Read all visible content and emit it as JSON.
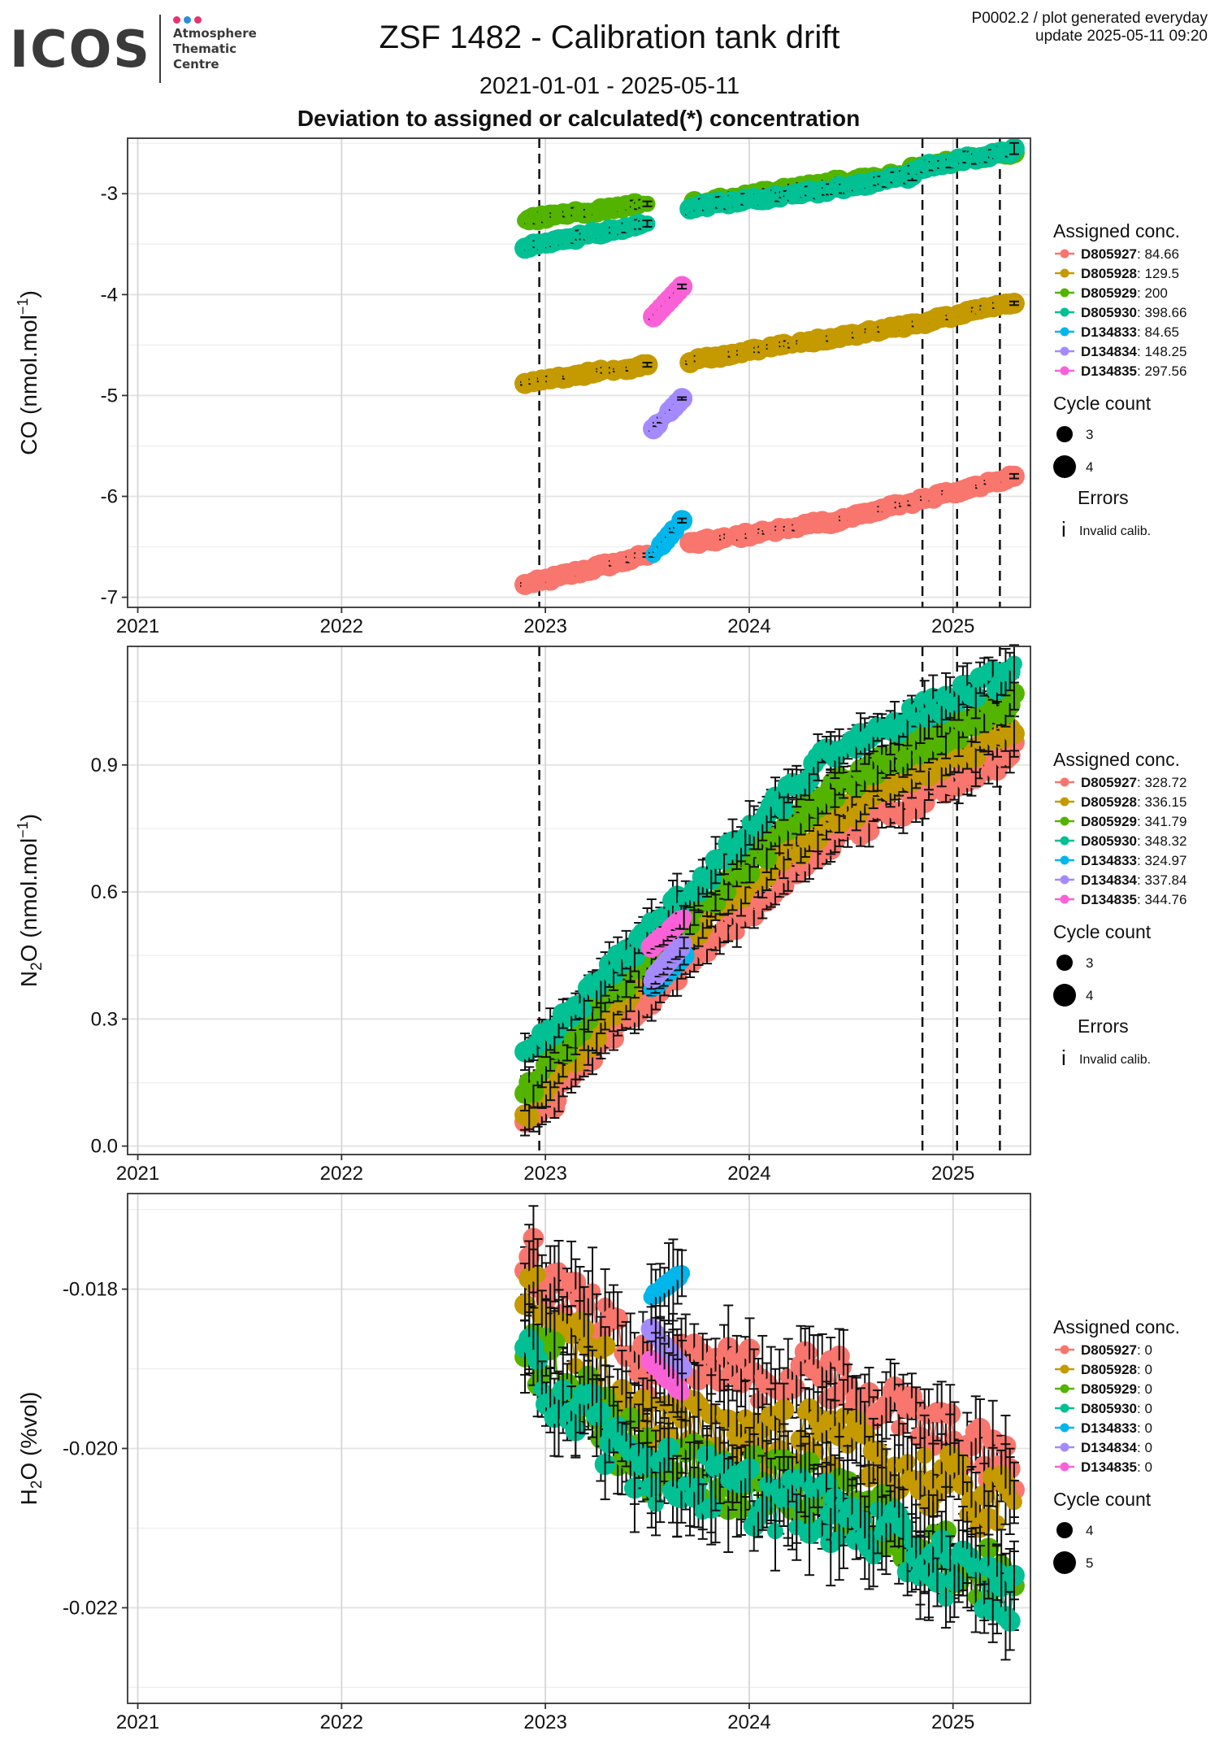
{
  "logo": {
    "wordmark": "ICOS",
    "line1": "Atmosphere",
    "line2": "Thematic",
    "line3": "Centre",
    "dot_colors": [
      "#e5336d",
      "#2a8fd6",
      "#e5336d"
    ]
  },
  "header": {
    "title": "ZSF 1482 - Calibration tank drift",
    "subtitle": "2021-01-01 - 2025-05-11",
    "heading": "Deviation to assigned or calculated(*) concentration",
    "plot_id": "P0002.2 / plot generated everyday",
    "update": "update  2025-05-11 09:20"
  },
  "colors": {
    "D805927": "#f8766d",
    "D805928": "#c49a00",
    "D805929": "#53b400",
    "D805930": "#00c094",
    "D134833": "#00b6eb",
    "D134834": "#a58aff",
    "D134835": "#fb61d7"
  },
  "chart_data": [
    {
      "type": "scatter",
      "id": "co",
      "ylabel": "CO (nmol.mol⁻¹)",
      "ylabel_main": "CO (nmol.mol",
      "ylabel_sup": "−1",
      "ylabel_end": ")",
      "xlim": [
        2020.95,
        2025.38
      ],
      "ylim": [
        -7.1,
        -2.45
      ],
      "xticks": [
        2021,
        2022,
        2023,
        2024,
        2025
      ],
      "xtick_labels": [
        "2021",
        "2022",
        "2023",
        "2024",
        "2025"
      ],
      "yticks": [
        -7,
        -6,
        -5,
        -4,
        -3
      ],
      "ytick_labels": [
        "-7",
        "-6",
        "-5",
        "-4",
        "-3"
      ],
      "vlines": [
        2022.97,
        2024.85,
        2025.02,
        2025.23
      ],
      "grid": true,
      "legend": {
        "position": "right",
        "assigned_title": "Assigned conc.",
        "entries": [
          {
            "id": "D805927",
            "label": "D805927",
            "value": ": 84.66"
          },
          {
            "id": "D805928",
            "label": "D805928",
            "value": ": 129.5"
          },
          {
            "id": "D805929",
            "label": "D805929",
            "value": ": 200"
          },
          {
            "id": "D805930",
            "label": "D805930",
            "value": ": 398.66"
          },
          {
            "id": "D134833",
            "label": "D134833",
            "value": ": 84.65"
          },
          {
            "id": "D134834",
            "label": "D134834",
            "value": ": 148.25"
          },
          {
            "id": "D134835",
            "label": "D134835",
            "value": ": 297.56"
          }
        ],
        "cycle_title": "Cycle count",
        "cycle_values": [
          "3",
          "4"
        ],
        "errors_title": "Errors",
        "errors_label": "Invalid calib."
      },
      "series": [
        {
          "id": "D805927",
          "segments": [
            {
              "x": [
                2022.9,
                2023.5
              ],
              "y": [
                -6.88,
                -6.58
              ]
            },
            {
              "x": [
                2023.71,
                2024.4
              ],
              "y": [
                -6.47,
                -6.25
              ]
            },
            {
              "x": [
                2024.4,
                2024.8
              ],
              "y": [
                -6.25,
                -6.06
              ]
            },
            {
              "x": [
                2024.8,
                2025.3
              ],
              "y": [
                -6.06,
                -5.8
              ]
            }
          ],
          "noise": 0.02,
          "err": 0.02
        },
        {
          "id": "D805928",
          "segments": [
            {
              "x": [
                2022.9,
                2023.5
              ],
              "y": [
                -4.87,
                -4.7
              ]
            },
            {
              "x": [
                2023.71,
                2024.4
              ],
              "y": [
                -4.66,
                -4.43
              ]
            },
            {
              "x": [
                2024.4,
                2024.8
              ],
              "y": [
                -4.43,
                -4.3
              ]
            },
            {
              "x": [
                2024.8,
                2025.3
              ],
              "y": [
                -4.3,
                -4.08
              ]
            }
          ],
          "noise": 0.015,
          "err": 0.02
        },
        {
          "id": "D805929",
          "segments": [
            {
              "x": [
                2022.9,
                2023.5
              ],
              "y": [
                -3.26,
                -3.1
              ]
            },
            {
              "x": [
                2023.71,
                2024.4
              ],
              "y": [
                -3.1,
                -2.89
              ]
            },
            {
              "x": [
                2024.4,
                2024.8
              ],
              "y": [
                -2.89,
                -2.8
              ]
            },
            {
              "x": [
                2024.8,
                2025.3
              ],
              "y": [
                -2.75,
                -2.59
              ]
            }
          ],
          "noise": 0.02,
          "err": 0.03
        },
        {
          "id": "D805930",
          "segments": [
            {
              "x": [
                2022.9,
                2023.5
              ],
              "y": [
                -3.53,
                -3.3
              ]
            },
            {
              "x": [
                2023.71,
                2024.4
              ],
              "y": [
                -3.14,
                -2.96
              ]
            },
            {
              "x": [
                2024.4,
                2024.8
              ],
              "y": [
                -2.96,
                -2.82
              ]
            },
            {
              "x": [
                2024.8,
                2025.3
              ],
              "y": [
                -2.75,
                -2.57
              ]
            }
          ],
          "noise": 0.02,
          "err": 0.04
        },
        {
          "id": "D134833",
          "segments": [
            {
              "x": [
                2023.53,
                2023.67
              ],
              "y": [
                -6.58,
                -6.24
              ]
            }
          ],
          "noise": 0.0,
          "err": 0.02
        },
        {
          "id": "D134834",
          "segments": [
            {
              "x": [
                2023.53,
                2023.67
              ],
              "y": [
                -5.33,
                -5.03
              ]
            }
          ],
          "noise": 0.0,
          "err": 0.02
        },
        {
          "id": "D134835",
          "segments": [
            {
              "x": [
                2023.53,
                2023.67
              ],
              "y": [
                -4.22,
                -3.92
              ]
            }
          ],
          "noise": 0.0,
          "err": 0.02
        }
      ]
    },
    {
      "type": "scatter",
      "id": "n2o",
      "ylabel": "N₂O (nmol.mol⁻¹)",
      "ylabel_main": "N",
      "ylabel_sub": "2",
      "ylabel_mid": "O (nmol.mol",
      "ylabel_sup": "−1",
      "ylabel_end": ")",
      "xlim": [
        2020.95,
        2025.38
      ],
      "ylim": [
        -0.02,
        1.18
      ],
      "xticks": [
        2021,
        2022,
        2023,
        2024,
        2025
      ],
      "xtick_labels": [
        "2021",
        "2022",
        "2023",
        "2024",
        "2025"
      ],
      "yticks": [
        0.0,
        0.3,
        0.6,
        0.9
      ],
      "ytick_labels": [
        "0.0",
        "0.3",
        "0.6",
        "0.9"
      ],
      "vlines": [
        2022.97,
        2024.85,
        2025.02,
        2025.23
      ],
      "grid": true,
      "legend": {
        "position": "right",
        "assigned_title": "Assigned conc.",
        "entries": [
          {
            "id": "D805927",
            "label": "D805927",
            "value": ": 328.72"
          },
          {
            "id": "D805928",
            "label": "D805928",
            "value": ": 336.15"
          },
          {
            "id": "D805929",
            "label": "D805929",
            "value": ": 341.79"
          },
          {
            "id": "D805930",
            "label": "D805930",
            "value": ": 348.32"
          },
          {
            "id": "D134833",
            "label": "D134833",
            "value": ": 324.97"
          },
          {
            "id": "D134834",
            "label": "D134834",
            "value": ": 337.84"
          },
          {
            "id": "D134835",
            "label": "D134835",
            "value": ": 344.76"
          }
        ],
        "cycle_title": "Cycle count",
        "cycle_values": [
          "3",
          "4"
        ],
        "errors_title": "Errors",
        "errors_label": "Invalid calib."
      },
      "series": [
        {
          "id": "D805927",
          "segments": [
            {
              "x": [
                2022.9,
                2023.5
              ],
              "y": [
                0.04,
                0.35
              ]
            },
            {
              "x": [
                2023.5,
                2024.4
              ],
              "y": [
                0.35,
                0.72
              ]
            },
            {
              "x": [
                2024.4,
                2025.3
              ],
              "y": [
                0.72,
                0.93
              ]
            }
          ],
          "noise": 0.025,
          "err": 0.03
        },
        {
          "id": "D805928",
          "segments": [
            {
              "x": [
                2022.9,
                2023.5
              ],
              "y": [
                0.08,
                0.42
              ]
            },
            {
              "x": [
                2023.5,
                2024.4
              ],
              "y": [
                0.42,
                0.77
              ]
            },
            {
              "x": [
                2024.4,
                2025.3
              ],
              "y": [
                0.77,
                0.99
              ]
            }
          ],
          "noise": 0.025,
          "err": 0.03
        },
        {
          "id": "D805929",
          "segments": [
            {
              "x": [
                2022.9,
                2023.5
              ],
              "y": [
                0.13,
                0.45
              ]
            },
            {
              "x": [
                2023.5,
                2024.4
              ],
              "y": [
                0.45,
                0.84
              ]
            },
            {
              "x": [
                2024.4,
                2025.3
              ],
              "y": [
                0.84,
                1.05
              ]
            }
          ],
          "noise": 0.025,
          "err": 0.03
        },
        {
          "id": "D805930",
          "segments": [
            {
              "x": [
                2022.9,
                2023.5
              ],
              "y": [
                0.2,
                0.5
              ]
            },
            {
              "x": [
                2023.5,
                2024.4
              ],
              "y": [
                0.5,
                0.93
              ]
            },
            {
              "x": [
                2024.4,
                2025.3
              ],
              "y": [
                0.93,
                1.12
              ]
            }
          ],
          "noise": 0.025,
          "err": 0.04
        },
        {
          "id": "D134833",
          "segments": [
            {
              "x": [
                2023.52,
                2023.68
              ],
              "y": [
                0.37,
                0.45
              ]
            }
          ],
          "noise": 0.0,
          "err": 0.02
        },
        {
          "id": "D134834",
          "segments": [
            {
              "x": [
                2023.52,
                2023.68
              ],
              "y": [
                0.39,
                0.48
              ]
            }
          ],
          "noise": 0.0,
          "err": 0.02
        },
        {
          "id": "D134835",
          "segments": [
            {
              "x": [
                2023.52,
                2023.68
              ],
              "y": [
                0.47,
                0.54
              ]
            }
          ],
          "noise": 0.0,
          "err": 0.02
        }
      ]
    },
    {
      "type": "scatter",
      "id": "h2o",
      "ylabel": "H₂O (%vol)",
      "ylabel_main": "H",
      "ylabel_sub": "2",
      "ylabel_mid": "O (%vol)",
      "xlim": [
        2020.95,
        2025.38
      ],
      "ylim": [
        -0.0232,
        -0.0168
      ],
      "xticks": [
        2021,
        2022,
        2023,
        2024,
        2025
      ],
      "xtick_labels": [
        "2021",
        "2022",
        "2023",
        "2024",
        "2025"
      ],
      "yticks": [
        -0.022,
        -0.02,
        -0.018
      ],
      "ytick_labels": [
        "-0.022",
        "-0.020",
        "-0.018"
      ],
      "vlines": [],
      "grid": true,
      "legend": {
        "position": "right",
        "assigned_title": "Assigned conc.",
        "entries": [
          {
            "id": "D805927",
            "label": "D805927",
            "value": ": 0"
          },
          {
            "id": "D805928",
            "label": "D805928",
            "value": ": 0"
          },
          {
            "id": "D805929",
            "label": "D805929",
            "value": ": 0"
          },
          {
            "id": "D805930",
            "label": "D805930",
            "value": ": 0"
          },
          {
            "id": "D134833",
            "label": "D134833",
            "value": ": 0"
          },
          {
            "id": "D134834",
            "label": "D134834",
            "value": ": 0"
          },
          {
            "id": "D134835",
            "label": "D134835",
            "value": ": 0"
          }
        ],
        "cycle_title": "Cycle count",
        "cycle_values": [
          "4",
          "5"
        ]
      },
      "series": [
        {
          "id": "D805927",
          "segments": [
            {
              "x": [
                2022.9,
                2023.5
              ],
              "y": [
                -0.0176,
                -0.019
              ]
            },
            {
              "x": [
                2023.5,
                2024.4
              ],
              "y": [
                -0.019,
                -0.0191
              ]
            },
            {
              "x": [
                2024.4,
                2025.3
              ],
              "y": [
                -0.0191,
                -0.0203
              ]
            }
          ],
          "noise": 0.00035,
          "err": 0.0004
        },
        {
          "id": "D805928",
          "segments": [
            {
              "x": [
                2022.9,
                2023.5
              ],
              "y": [
                -0.018,
                -0.0197
              ]
            },
            {
              "x": [
                2023.5,
                2024.4
              ],
              "y": [
                -0.0197,
                -0.0199
              ]
            },
            {
              "x": [
                2024.4,
                2025.3
              ],
              "y": [
                -0.0199,
                -0.0208
              ]
            }
          ],
          "noise": 0.0004,
          "err": 0.0004
        },
        {
          "id": "D805929",
          "segments": [
            {
              "x": [
                2022.9,
                2023.5
              ],
              "y": [
                -0.0187,
                -0.0202
              ]
            },
            {
              "x": [
                2023.5,
                2024.4
              ],
              "y": [
                -0.0202,
                -0.0206
              ]
            },
            {
              "x": [
                2024.4,
                2025.3
              ],
              "y": [
                -0.0206,
                -0.0218
              ]
            }
          ],
          "noise": 0.0004,
          "err": 0.0004
        },
        {
          "id": "D805930",
          "segments": [
            {
              "x": [
                2022.9,
                2023.5
              ],
              "y": [
                -0.0189,
                -0.0203
              ]
            },
            {
              "x": [
                2023.5,
                2024.4
              ],
              "y": [
                -0.0203,
                -0.0208
              ]
            },
            {
              "x": [
                2024.4,
                2025.3
              ],
              "y": [
                -0.0208,
                -0.0219
              ]
            }
          ],
          "noise": 0.0004,
          "err": 0.0004
        },
        {
          "id": "D134833",
          "segments": [
            {
              "x": [
                2023.52,
                2023.67
              ],
              "y": [
                -0.0181,
                -0.0178
              ]
            }
          ],
          "noise": 0.0,
          "err": 0.0004
        },
        {
          "id": "D134834",
          "segments": [
            {
              "x": [
                2023.52,
                2023.67
              ],
              "y": [
                -0.0185,
                -0.019
              ]
            }
          ],
          "noise": 0.0,
          "err": 0.0003
        },
        {
          "id": "D134835",
          "segments": [
            {
              "x": [
                2023.52,
                2023.67
              ],
              "y": [
                -0.0189,
                -0.0193
              ]
            }
          ],
          "noise": 0.0,
          "err": 0.0003
        }
      ]
    }
  ]
}
